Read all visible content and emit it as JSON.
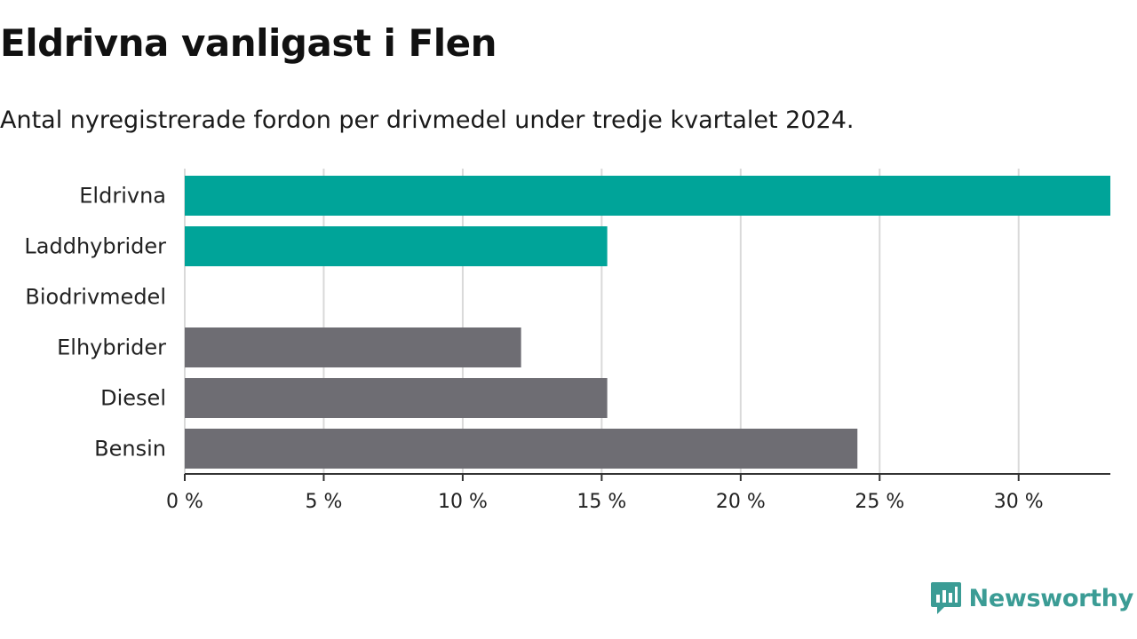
{
  "chart_data": {
    "type": "bar",
    "orientation": "horizontal",
    "title": "Eldrivna vanligast i Flen",
    "subtitle": "Antal nyregistrerade fordon per drivmedel under tredje kvartalet 2024.",
    "categories": [
      "Eldrivna",
      "Laddhybrider",
      "Biodrivmedel",
      "Elhybrider",
      "Diesel",
      "Bensin"
    ],
    "values": [
      33.3,
      15.2,
      0,
      12.1,
      15.2,
      24.2
    ],
    "colors": [
      "#00a499",
      "#00a499",
      "#00a499",
      "#6e6d73",
      "#6e6d73",
      "#6e6d73"
    ],
    "xticks": [
      0,
      5,
      10,
      15,
      20,
      25,
      30
    ],
    "xtick_labels": [
      "0 %",
      "5 %",
      "10 %",
      "15 %",
      "20 %",
      "25 %",
      "30 %"
    ],
    "xlim": [
      0,
      33.3
    ],
    "grid": true,
    "xlabel": "",
    "ylabel": ""
  },
  "brand": {
    "name": "Newsworthy",
    "color": "#3b9c95",
    "icon": "newsworthy-logo-icon"
  }
}
